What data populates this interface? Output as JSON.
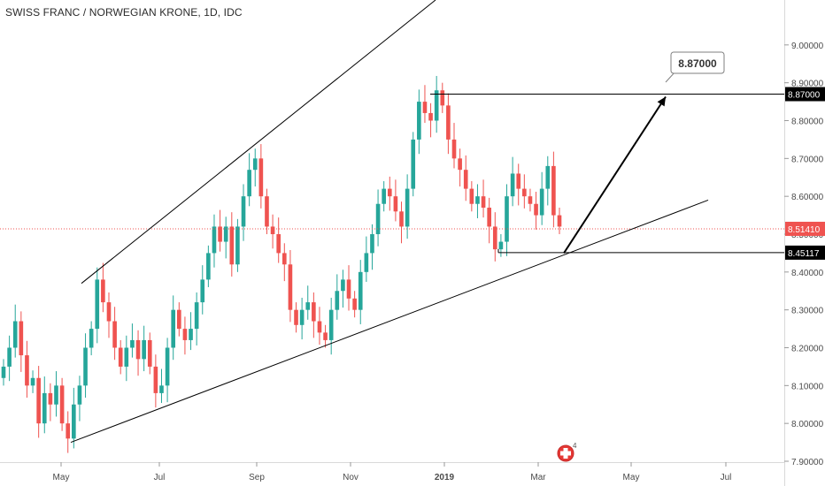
{
  "header": {
    "title": "SWISS FRANC / NORWEGIAN KRONE, 1D, IDC"
  },
  "chart_data": {
    "type": "candlestick",
    "title": "SWISS FRANC / NORWEGIAN KRONE, 1D, IDC",
    "ylim": [
      7.9,
      9.1
    ],
    "y_ticks": [
      "7.90000",
      "8.00000",
      "8.10000",
      "8.20000",
      "8.30000",
      "8.40000",
      "8.50000",
      "8.60000",
      "8.70000",
      "8.80000",
      "8.90000",
      "9.00000"
    ],
    "x_ticks": [
      "May",
      "Jul",
      "Sep",
      "Nov",
      "2019",
      "Mar",
      "May",
      "Jul"
    ],
    "grid": false,
    "colors": {
      "up": "#26a69a",
      "down": "#ef5350",
      "text": "#4a4a4a",
      "trendline": "#000000",
      "price_line": "#ef5350"
    },
    "approx_closes": [
      8.15,
      8.2,
      8.27,
      8.18,
      8.1,
      8.12,
      8.0,
      8.08,
      8.05,
      8.1,
      8.0,
      7.96,
      8.05,
      8.1,
      8.2,
      8.25,
      8.38,
      8.32,
      8.27,
      8.2,
      8.15,
      8.2,
      8.22,
      8.17,
      8.22,
      8.15,
      8.08,
      8.1,
      8.2,
      8.3,
      8.25,
      8.22,
      8.25,
      8.32,
      8.38,
      8.45,
      8.52,
      8.48,
      8.52,
      8.42,
      8.52,
      8.6,
      8.67,
      8.7,
      8.6,
      8.52,
      8.5,
      8.45,
      8.42,
      8.3,
      8.26,
      8.3,
      8.32,
      8.27,
      8.24,
      8.22,
      8.3,
      8.35,
      8.38,
      8.33,
      8.3,
      8.4,
      8.45,
      8.5,
      8.58,
      8.62,
      8.6,
      8.56,
      8.52,
      8.62,
      8.75,
      8.85,
      8.82,
      8.8,
      8.88,
      8.84,
      8.75,
      8.7,
      8.67,
      8.62,
      8.58,
      8.6,
      8.57,
      8.52,
      8.46,
      8.48,
      8.6,
      8.66,
      8.62,
      8.6,
      8.58,
      8.55,
      8.62,
      8.68,
      8.55,
      8.52
    ],
    "horizontal_levels": [
      {
        "value": 8.87,
        "label": "8.87000"
      },
      {
        "value": 8.45117,
        "label": "8.45117"
      }
    ],
    "current_price": {
      "value": 8.5141,
      "label": "8.51410"
    },
    "trendlines": [
      {
        "from": [
          "May",
          8.37
        ],
        "to": [
          "Dec",
          9.1
        ]
      },
      {
        "from": [
          "May",
          7.95
        ],
        "to": [
          "Jun 2019",
          8.59
        ]
      }
    ],
    "target_annotation": {
      "label": "8.87000",
      "from_value": 8.45,
      "to_value": 8.87
    },
    "event_marker": {
      "count": "4"
    }
  }
}
